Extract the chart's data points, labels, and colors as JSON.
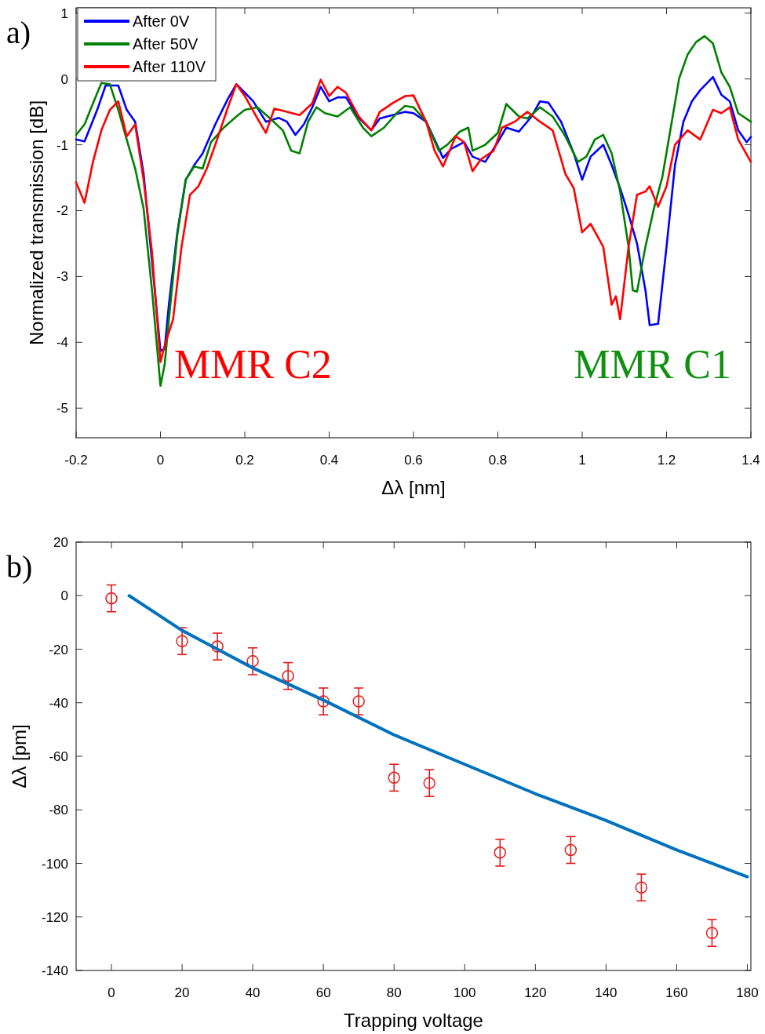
{
  "chart_data": [
    {
      "type": "line",
      "title": "a)",
      "xlabel": "Δλ [nm]",
      "ylabel": "Normalized transmission [dB]",
      "xlim": [
        -0.2,
        1.4
      ],
      "ylim": [
        -5.45,
        1.08
      ],
      "xticks": [
        -0.2,
        0,
        0.2,
        0.4,
        0.6,
        0.8,
        1,
        1.2,
        1.4
      ],
      "yticks": [
        -5,
        -4,
        -3,
        -2,
        -1,
        0,
        1
      ],
      "grid": false,
      "legend": "top left",
      "marker": "none",
      "line_style": "solid",
      "annotations": [
        "MMR C2",
        "MMR C1"
      ],
      "series": [
        {
          "name": "After 0V",
          "color": "#0000ff",
          "x": [
            -0.2,
            -0.18,
            -0.15,
            -0.13,
            -0.1,
            -0.08,
            -0.06,
            -0.04,
            -0.02,
            0,
            0.01,
            0.02,
            0.04,
            0.06,
            0.08,
            0.1,
            0.13,
            0.16,
            0.18,
            0.2,
            0.22,
            0.25,
            0.28,
            0.3,
            0.32,
            0.34,
            0.36,
            0.38,
            0.4,
            0.42,
            0.44,
            0.47,
            0.5,
            0.52,
            0.55,
            0.58,
            0.6,
            0.63,
            0.65,
            0.67,
            0.69,
            0.72,
            0.74,
            0.77,
            0.8,
            0.82,
            0.85,
            0.88,
            0.9,
            0.92,
            0.95,
            0.98,
            1.0,
            1.02,
            1.05,
            1.07,
            1.09,
            1.11,
            1.13,
            1.15,
            1.16,
            1.18,
            1.2,
            1.22,
            1.24,
            1.26,
            1.28,
            1.31,
            1.33,
            1.35,
            1.37,
            1.39,
            1.4
          ],
          "values": [
            -0.92,
            -0.95,
            -0.47,
            -0.1,
            -0.1,
            -0.47,
            -0.65,
            -1.44,
            -2.77,
            -4.13,
            -4.1,
            -3.43,
            -2.33,
            -1.53,
            -1.31,
            -1.13,
            -0.69,
            -0.3,
            -0.08,
            -0.21,
            -0.34,
            -0.65,
            -0.59,
            -0.65,
            -0.85,
            -0.69,
            -0.43,
            -0.12,
            -0.34,
            -0.28,
            -0.28,
            -0.59,
            -0.78,
            -0.6,
            -0.55,
            -0.5,
            -0.52,
            -0.65,
            -0.92,
            -1.2,
            -1.06,
            -0.96,
            -1.18,
            -1.26,
            -0.96,
            -0.74,
            -0.8,
            -0.57,
            -0.34,
            -0.36,
            -0.65,
            -1.13,
            -1.53,
            -1.18,
            -1.0,
            -1.31,
            -1.66,
            -2.06,
            -2.5,
            -3.21,
            -3.74,
            -3.72,
            -2.55,
            -1.31,
            -0.65,
            -0.34,
            -0.17,
            0.03,
            -0.24,
            -0.34,
            -0.78,
            -0.96,
            -0.88
          ]
        },
        {
          "name": "After 50V",
          "color": "#008000",
          "x": [
            -0.2,
            -0.18,
            -0.16,
            -0.14,
            -0.12,
            -0.1,
            -0.08,
            -0.06,
            -0.04,
            -0.02,
            0,
            0.01,
            0.02,
            0.04,
            0.06,
            0.08,
            0.1,
            0.12,
            0.15,
            0.18,
            0.2,
            0.23,
            0.26,
            0.29,
            0.31,
            0.33,
            0.35,
            0.37,
            0.39,
            0.42,
            0.45,
            0.48,
            0.5,
            0.53,
            0.56,
            0.58,
            0.6,
            0.63,
            0.66,
            0.68,
            0.71,
            0.73,
            0.74,
            0.77,
            0.8,
            0.82,
            0.85,
            0.87,
            0.9,
            0.93,
            0.96,
            0.99,
            1.01,
            1.03,
            1.05,
            1.07,
            1.09,
            1.11,
            1.12,
            1.13,
            1.15,
            1.17,
            1.19,
            1.21,
            1.23,
            1.25,
            1.27,
            1.29,
            1.31,
            1.33,
            1.35,
            1.37,
            1.4
          ],
          "values": [
            -0.85,
            -0.69,
            -0.37,
            -0.06,
            -0.08,
            -0.47,
            -0.92,
            -1.36,
            -1.97,
            -3.21,
            -4.66,
            -4.34,
            -3.65,
            -2.37,
            -1.53,
            -1.33,
            -1.36,
            -0.96,
            -0.74,
            -0.57,
            -0.47,
            -0.43,
            -0.6,
            -0.78,
            -1.09,
            -1.13,
            -0.65,
            -0.43,
            -0.52,
            -0.57,
            -0.43,
            -0.74,
            -0.87,
            -0.74,
            -0.52,
            -0.41,
            -0.43,
            -0.65,
            -1.09,
            -1.0,
            -0.8,
            -0.74,
            -1.09,
            -1.0,
            -0.82,
            -0.38,
            -0.57,
            -0.6,
            -0.43,
            -0.57,
            -0.87,
            -1.26,
            -1.18,
            -0.92,
            -0.85,
            -1.13,
            -1.71,
            -2.55,
            -3.21,
            -3.23,
            -2.55,
            -1.97,
            -1.49,
            -0.74,
            0.01,
            0.37,
            0.56,
            0.65,
            0.54,
            0.1,
            -0.12,
            -0.52,
            -0.65
          ]
        },
        {
          "name": "After 110V",
          "color": "#ff0000",
          "x": [
            -0.2,
            -0.18,
            -0.16,
            -0.14,
            -0.12,
            -0.1,
            -0.08,
            -0.06,
            -0.04,
            -0.02,
            0,
            0.01,
            0.03,
            0.05,
            0.07,
            0.09,
            0.11,
            0.13,
            0.16,
            0.18,
            0.2,
            0.23,
            0.25,
            0.27,
            0.3,
            0.33,
            0.36,
            0.38,
            0.4,
            0.42,
            0.44,
            0.47,
            0.5,
            0.52,
            0.55,
            0.58,
            0.6,
            0.63,
            0.65,
            0.67,
            0.7,
            0.72,
            0.74,
            0.76,
            0.79,
            0.81,
            0.84,
            0.87,
            0.9,
            0.93,
            0.96,
            0.98,
            1.0,
            1.02,
            1.05,
            1.07,
            1.08,
            1.09,
            1.11,
            1.13,
            1.15,
            1.16,
            1.18,
            1.2,
            1.22,
            1.25,
            1.28,
            1.31,
            1.33,
            1.35,
            1.37,
            1.4
          ],
          "values": [
            -1.57,
            -1.88,
            -1.26,
            -0.78,
            -0.47,
            -0.34,
            -0.87,
            -0.69,
            -1.53,
            -2.63,
            -4.3,
            -4.05,
            -3.65,
            -2.55,
            -1.76,
            -1.63,
            -1.36,
            -1.0,
            -0.43,
            -0.08,
            -0.26,
            -0.6,
            -0.82,
            -0.45,
            -0.5,
            -0.55,
            -0.37,
            -0.01,
            -0.26,
            -0.12,
            -0.21,
            -0.57,
            -0.78,
            -0.5,
            -0.37,
            -0.26,
            -0.25,
            -0.65,
            -1.09,
            -1.33,
            -0.87,
            -0.96,
            -1.4,
            -1.22,
            -1.09,
            -0.74,
            -0.65,
            -0.5,
            -0.65,
            -0.78,
            -1.44,
            -1.66,
            -2.33,
            -2.2,
            -2.55,
            -3.43,
            -3.3,
            -3.65,
            -2.55,
            -1.76,
            -1.71,
            -1.63,
            -1.94,
            -1.63,
            -1.0,
            -0.78,
            -0.92,
            -0.47,
            -0.52,
            -0.43,
            -0.92,
            -1.26
          ]
        }
      ]
    },
    {
      "type": "scatter",
      "title": "b)",
      "xlabel": "Trapping voltage",
      "ylabel": "Δλ [pm]",
      "xlim": [
        -10,
        181
      ],
      "ylim": [
        -140,
        20
      ],
      "xticks": [
        0,
        20,
        40,
        60,
        80,
        100,
        120,
        140,
        160,
        180
      ],
      "yticks": [
        -140,
        -120,
        -100,
        -80,
        -60,
        -40,
        -20,
        0,
        20
      ],
      "grid": false,
      "legend": false,
      "series": [
        {
          "color": "#e41a1c",
          "marker": "circle",
          "x": [
            0,
            20,
            30,
            40,
            50,
            60,
            70,
            80,
            90,
            110,
            130,
            150,
            170
          ],
          "values": [
            -1,
            -17,
            -19,
            -24.5,
            -30,
            -39.5,
            -39.5,
            -68,
            -70,
            -96,
            -95,
            -109,
            -126
          ],
          "errors": [
            5,
            5,
            5,
            5,
            5,
            5,
            5,
            5,
            5,
            5,
            5,
            5,
            5
          ]
        },
        {
          "type": "line",
          "color": "#0072bd",
          "marker": "none",
          "x": [
            5,
            20,
            40,
            60,
            80,
            100,
            120,
            140,
            160,
            180
          ],
          "values": [
            0,
            -13,
            -27,
            -39,
            -52,
            -63,
            -74,
            -84,
            -95,
            -105
          ]
        }
      ]
    }
  ]
}
